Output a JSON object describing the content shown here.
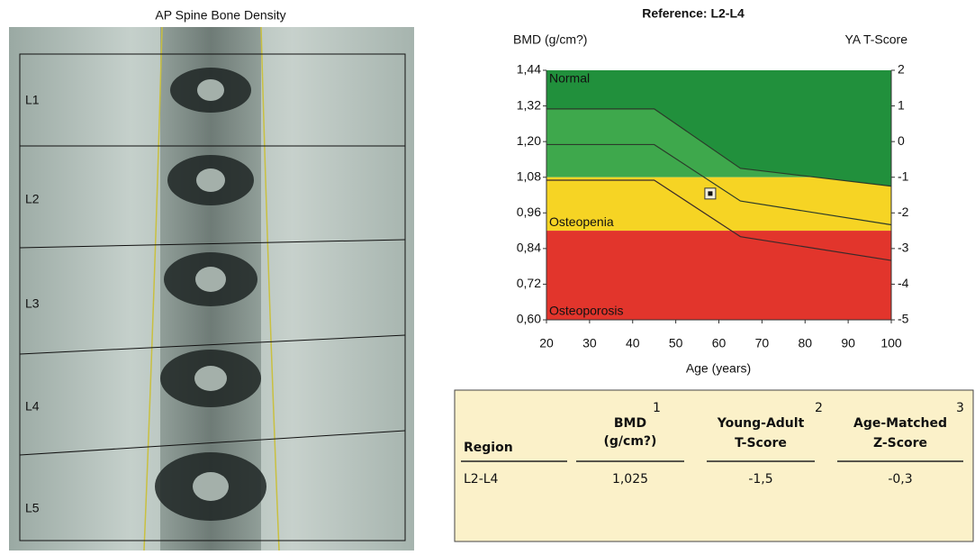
{
  "image": {
    "title": "AP Spine Bone Density",
    "regions": [
      "L1",
      "L2",
      "L3",
      "L4",
      "L5"
    ]
  },
  "chart_data": {
    "type": "reference-bands",
    "title": "Reference: L2-L4",
    "y_label": "BMD (g/cm?)",
    "y2_label": "YA T-Score",
    "x_label": "Age (years)",
    "xlim": [
      20,
      100
    ],
    "xticks": [
      20,
      30,
      40,
      50,
      60,
      70,
      80,
      90,
      100
    ],
    "ylim": [
      0.6,
      1.44
    ],
    "yticks": [
      {
        "value": 0.6,
        "label": "0,60"
      },
      {
        "value": 0.72,
        "label": "0,72"
      },
      {
        "value": 0.84,
        "label": "0,84"
      },
      {
        "value": 0.96,
        "label": "0,96"
      },
      {
        "value": 1.08,
        "label": "1,08"
      },
      {
        "value": 1.2,
        "label": "1,20"
      },
      {
        "value": 1.32,
        "label": "1,32"
      },
      {
        "value": 1.44,
        "label": "1,44"
      }
    ],
    "y2lim": [
      -5,
      2
    ],
    "y2ticks": [
      -5,
      -4,
      -3,
      -2,
      -1,
      0,
      1,
      2
    ],
    "bands": [
      {
        "name": "Normal",
        "range": [
          1.08,
          1.44
        ],
        "color": "#3ea84c"
      },
      {
        "name": "Osteopenia",
        "range": [
          0.9,
          1.08
        ],
        "color": "#f6d424"
      },
      {
        "name": "Osteoporosis",
        "range": [
          0.6,
          0.9
        ],
        "color": "#e2352c"
      }
    ],
    "reference_lines": [
      {
        "x": [
          20,
          45,
          65,
          100
        ],
        "values": [
          1.31,
          1.31,
          1.11,
          1.05
        ],
        "color": "#2b3a2a",
        "fill": "#21903c"
      },
      {
        "x": [
          20,
          45,
          65,
          100
        ],
        "values": [
          1.19,
          1.19,
          1.0,
          0.92
        ],
        "color": "#2b3a2a"
      },
      {
        "x": [
          20,
          45,
          65,
          100
        ],
        "values": [
          1.07,
          1.07,
          0.88,
          0.8
        ],
        "color": "#3a2a2a"
      }
    ],
    "points": {
      "x": [
        58
      ],
      "values": [
        1.025
      ]
    }
  },
  "table": {
    "headers": [
      {
        "title": "Region"
      },
      {
        "title": "BMD",
        "sub": "(g/cm?)",
        "note": "1"
      },
      {
        "title": "Young-Adult",
        "sub": "T-Score",
        "note": "2"
      },
      {
        "title": "Age-Matched",
        "sub": "Z-Score",
        "note": "3"
      }
    ],
    "rows": [
      [
        "L2-L4",
        "1,025",
        "-1,5",
        "-0,3"
      ]
    ]
  }
}
